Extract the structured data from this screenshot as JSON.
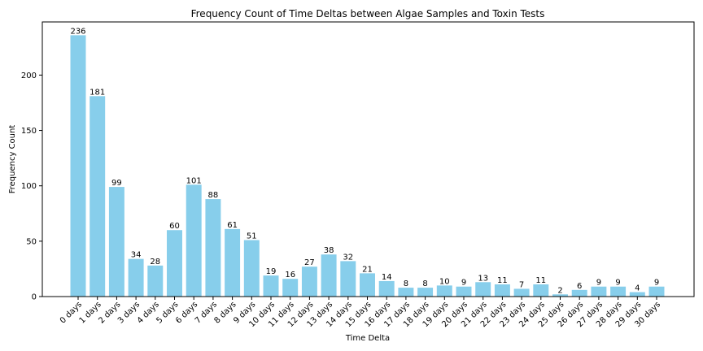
{
  "chart_data": {
    "type": "bar",
    "title": "Frequency Count of Time Deltas between Algae Samples and Toxin Tests",
    "xlabel": "Time Delta",
    "ylabel": "Frequency Count",
    "categories": [
      "0 days",
      "1 days",
      "2 days",
      "3 days",
      "4 days",
      "5 days",
      "6 days",
      "7 days",
      "8 days",
      "9 days",
      "10 days",
      "11 days",
      "12 days",
      "13 days",
      "14 days",
      "15 days",
      "16 days",
      "17 days",
      "18 days",
      "19 days",
      "20 days",
      "21 days",
      "22 days",
      "23 days",
      "24 days",
      "25 days",
      "26 days",
      "27 days",
      "28 days",
      "29 days",
      "30 days"
    ],
    "values": [
      236,
      181,
      99,
      34,
      28,
      60,
      101,
      88,
      61,
      51,
      19,
      16,
      27,
      38,
      32,
      21,
      14,
      8,
      8,
      10,
      9,
      13,
      11,
      7,
      11,
      2,
      6,
      9,
      9,
      4,
      9
    ],
    "ylim": [
      0,
      248
    ],
    "yticks": [
      0,
      50,
      100,
      150,
      200
    ],
    "bar_color": "#87ceeb",
    "grid": false,
    "legend": false,
    "data_labels": true
  }
}
